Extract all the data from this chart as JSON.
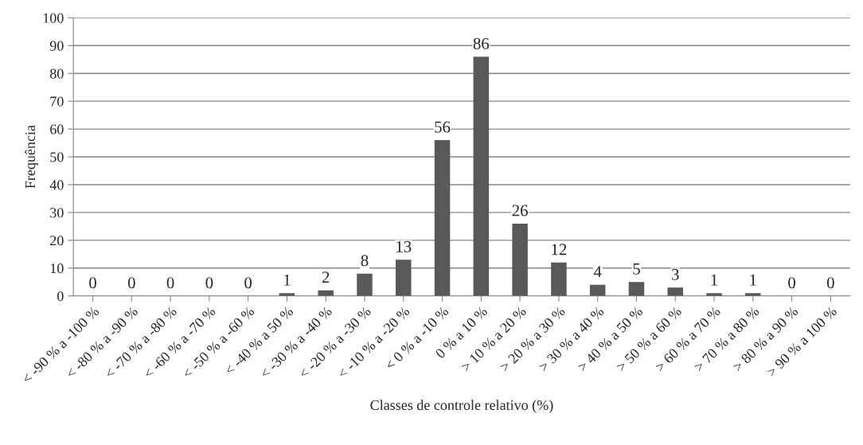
{
  "chart_data": {
    "type": "bar",
    "xlabel": "Classes de controle relativo (%)",
    "ylabel": "Frequência",
    "categories": [
      "< -90 % a -100 %",
      "< -80 % a -90 %",
      "< -70 % a -80 %",
      "< -60 % a -70 %",
      "< -50 % a -60 %",
      "< -40 % a 50 %",
      "< -30 % a -40 %",
      "< -20 % a -30 %",
      "< -10 % a -20 %",
      "< 0 % a -10 %",
      "0 % a 10 %",
      "> 10 % a 20 %",
      "> 20 % a 30 %",
      "> 30 % a 40 %",
      "> 40 % a 50 %",
      "> 50 % a 60 %",
      "> 60 % a 70 %",
      "> 70 % a 80 %",
      "> 80 % a 90 %",
      "> 90 % a 100 %"
    ],
    "values": [
      0,
      0,
      0,
      0,
      0,
      1,
      2,
      8,
      13,
      56,
      86,
      26,
      12,
      4,
      5,
      3,
      1,
      1,
      0,
      0
    ],
    "color": "#595959",
    "ylim": [
      0,
      100
    ],
    "yticks": [
      0,
      10,
      20,
      30,
      40,
      50,
      60,
      70,
      80,
      90,
      100
    ],
    "grid": "y",
    "data_labels": true
  }
}
